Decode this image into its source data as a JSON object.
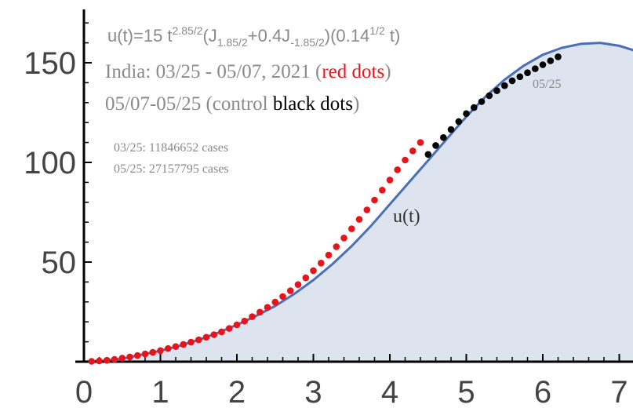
{
  "chart_data": {
    "type": "scatter",
    "title": "",
    "xlabel": "",
    "ylabel": "",
    "xlim": [
      0,
      7.3
    ],
    "ylim": [
      0,
      175
    ],
    "x_ticks": [
      0,
      1,
      2,
      3,
      4,
      5,
      6,
      7
    ],
    "y_ticks": [
      50,
      100,
      150
    ],
    "x_tick_labels": [
      "0",
      "1",
      "2",
      "3",
      "4",
      "5",
      "6",
      "7"
    ],
    "y_tick_labels": [
      "50",
      "100",
      "150"
    ],
    "grid": false,
    "legend": "none",
    "colors": {
      "curve": "#4a6fb5",
      "fill": "#dde3ef",
      "red_dots": "#e8141c",
      "black_dots": "#000000",
      "text": "#8a8a8a",
      "axis": "#000000"
    },
    "annotations": {
      "formula": {
        "prefix": "u(t)=15 t",
        "sup1": "2.85/2",
        "mid1": "(J",
        "sub1": "1.85/2",
        "mid2": "+0.4J",
        "sub2": "-1.85/2",
        "mid3": ")(0.14",
        "sup2": "1/2",
        "suffix": " t)"
      },
      "line2_prefix": "India:  03/25 - 05/07, 2021 (",
      "line2_red": "red dots",
      "line2_suffix": ")",
      "line3_prefix": "05/07-05/25 (control ",
      "line3_black": "black dots",
      "line3_suffix": ")",
      "cases_start": "03/25: 11846652 cases",
      "cases_end": "05/25: 27157795 cases",
      "curve_label": "u(t)",
      "end_date": "05/25"
    },
    "series": [
      {
        "kind": "curve",
        "x": [
          0,
          0.25,
          0.5,
          0.75,
          1,
          1.25,
          1.5,
          1.75,
          2,
          2.25,
          2.5,
          2.75,
          3,
          3.25,
          3.5,
          3.75,
          4,
          4.25,
          4.5,
          4.75,
          5,
          5.25,
          5.5,
          5.75,
          6,
          6.25,
          6.5,
          6.75,
          7,
          7.25,
          7.3
        ],
        "y": [
          0,
          0.5,
          1.5,
          3.5,
          5.5,
          8,
          11,
          14.5,
          18.5,
          23,
          28,
          34,
          41,
          49,
          58,
          68,
          79,
          90,
          101,
          112,
          123,
          133,
          141.5,
          148.5,
          154,
          157.5,
          159.5,
          160,
          158.5,
          155.5,
          154.5
        ]
      },
      {
        "kind": "scatter",
        "x": [
          0.1,
          0.2,
          0.3,
          0.4,
          0.5,
          0.6,
          0.7,
          0.8,
          0.9,
          1.0,
          1.1,
          1.2,
          1.3,
          1.4,
          1.5,
          1.6,
          1.7,
          1.8,
          1.9,
          2.0,
          2.1,
          2.2,
          2.3,
          2.4,
          2.5,
          2.6,
          2.7,
          2.8,
          2.9,
          3.0,
          3.1,
          3.2,
          3.3,
          3.4,
          3.5,
          3.6,
          3.7,
          3.8,
          3.9,
          4.0,
          4.1,
          4.2,
          4.3,
          4.4
        ],
        "y": [
          0.2,
          0.4,
          0.7,
          1.2,
          1.8,
          2.4,
          3.1,
          3.9,
          4.7,
          5.6,
          6.6,
          7.6,
          8.7,
          9.8,
          11.0,
          12.3,
          13.6,
          15.0,
          16.7,
          18.5,
          20.4,
          22.6,
          24.9,
          27.3,
          29.9,
          32.7,
          35.6,
          38.7,
          42.1,
          45.7,
          49.5,
          53.5,
          57.7,
          62.1,
          66.7,
          71.4,
          76.2,
          81.1,
          86.1,
          91.2,
          96.3,
          101.2,
          105.8,
          110.0
        ]
      },
      {
        "kind": "scatter",
        "x": [
          4.5,
          4.6,
          4.7,
          4.8,
          4.9,
          5.0,
          5.1,
          5.2,
          5.3,
          5.4,
          5.5,
          5.6,
          5.7,
          5.8,
          5.9,
          6.0,
          6.1,
          6.2
        ],
        "y": [
          104.0,
          108.5,
          112.5,
          116.5,
          120.5,
          124.5,
          127.5,
          130.5,
          133.5,
          136.0,
          138.5,
          141.0,
          143.0,
          145.0,
          147.0,
          149.0,
          151.0,
          153.0
        ]
      }
    ]
  }
}
